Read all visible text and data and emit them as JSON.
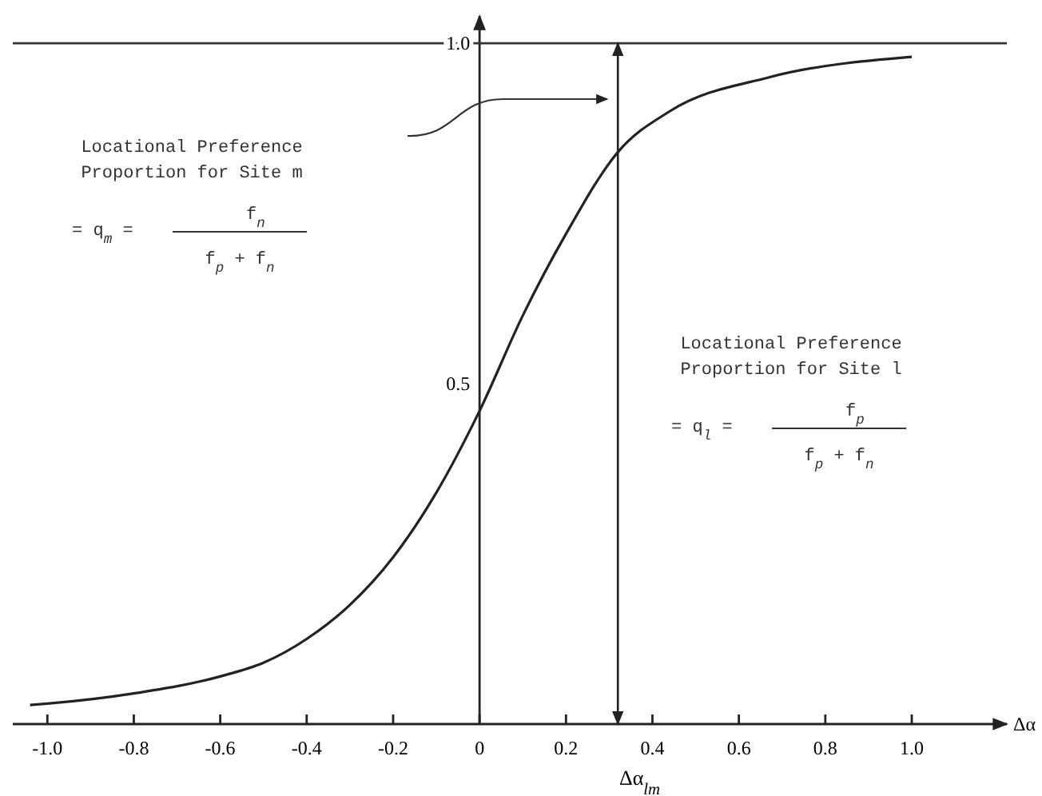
{
  "chart_data": {
    "type": "line",
    "xlabel": "Δα$_{lm}$",
    "x": [
      -1.04,
      -1.0,
      -0.8,
      -0.6,
      -0.5,
      -0.4,
      -0.3,
      -0.2,
      -0.1,
      0.0,
      0.1,
      0.2,
      0.32,
      0.44,
      0.67,
      1.0
    ],
    "series": [
      {
        "color": "#222222",
        "values": [
          0.028,
          0.03,
          0.045,
          0.07,
          0.09,
          0.125,
          0.175,
          0.245,
          0.34,
          0.46,
          0.6,
          0.72,
          0.84,
          0.9,
          0.95,
          0.98
        ]
      }
    ],
    "xlim": [
      -1.08,
      1.22
    ],
    "ylim": [
      0,
      1.04
    ],
    "xticks": [
      {
        "value": -1.0,
        "label": "-1.0"
      },
      {
        "value": -0.8,
        "label": "-0.8"
      },
      {
        "value": -0.6,
        "label": "-0.6"
      },
      {
        "value": -0.4,
        "label": "-0.4"
      },
      {
        "value": -0.2,
        "label": "-0.2"
      },
      0,
      0.2,
      0.4,
      0.6,
      0.8,
      {
        "value": 1.0,
        "label": "1.0"
      }
    ],
    "yticks": [
      0.5,
      {
        "value": 1.0,
        "label": "1.0"
      }
    ],
    "ref_lines": [
      {
        "axis": "y",
        "value": 1.0,
        "color": "#333333"
      },
      {
        "axis": "x",
        "value": 0.32,
        "color": "#222222"
      }
    ],
    "annotations": [
      "Locational Preference Proportion for Site m",
      "= q$_{m}$ =",
      "f$_{n}$",
      "f$_{p}$ + f$_{n}$",
      "Locational Preference Proportion for Site l",
      "= q$_{l}$ =",
      "f$_{p}$",
      "f$_{p}$ + f$_{n}$",
      "Δα"
    ],
    "grid": false,
    "marker": "none",
    "line_style": "solid"
  }
}
